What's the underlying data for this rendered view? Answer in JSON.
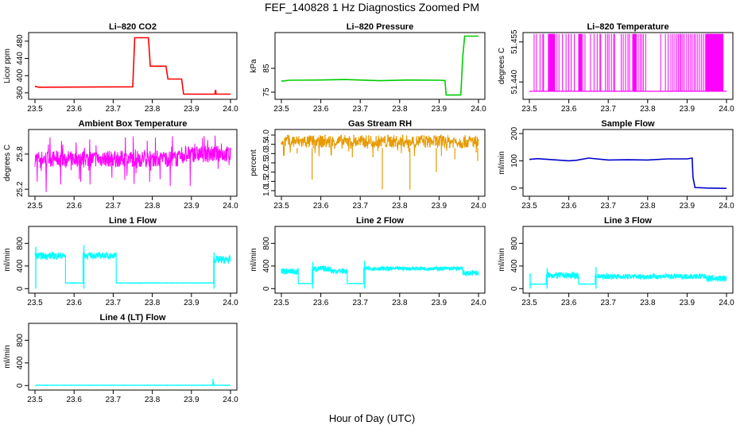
{
  "figure": {
    "title": "FEF_140828  1 Hz Diagnostics Zoomed PM",
    "xlabel": "Hour of Day (UTC)"
  },
  "chart_data": [
    {
      "type": "line",
      "title": "Li–820 CO2",
      "ylabel": "Licor ppm",
      "color": "#ff0000",
      "xlim": [
        23.5,
        24.0
      ],
      "xticks": [
        "23.5",
        "23.6",
        "23.7",
        "23.8",
        "23.9",
        "24.0"
      ],
      "ylim": [
        345,
        500
      ],
      "yticks": [
        "360",
        "400",
        "440",
        "480"
      ],
      "x": [
        23.5,
        23.51,
        23.75,
        23.755,
        23.79,
        23.795,
        23.835,
        23.84,
        23.875,
        23.88,
        23.96,
        23.962,
        23.963,
        24.0
      ],
      "y": [
        375,
        373,
        374,
        488,
        488,
        422,
        422,
        392,
        392,
        357,
        357,
        367,
        357,
        357
      ]
    },
    {
      "type": "line",
      "title": "Li–820 Pressure",
      "ylabel": "kPa",
      "color": "#00cc00",
      "xlim": [
        23.5,
        24.0
      ],
      "xticks": [
        "23.5",
        "23.6",
        "23.7",
        "23.8",
        "23.9",
        "24.0"
      ],
      "ylim": [
        72,
        100
      ],
      "yticks": [
        "75",
        "85"
      ],
      "x": [
        23.5,
        23.52,
        23.6,
        23.66,
        23.75,
        23.82,
        23.9,
        23.915,
        23.918,
        23.955,
        23.96,
        23.965,
        24.0
      ],
      "y": [
        79.6,
        80.0,
        80.1,
        80.3,
        79.8,
        80.1,
        80.0,
        79.9,
        73.8,
        73.8,
        90.0,
        98.5,
        98.5
      ]
    },
    {
      "type": "line",
      "title": "Li–820 Temperature",
      "ylabel": "degrees C",
      "color": "#ff00ff",
      "xlim": [
        23.5,
        24.0
      ],
      "xticks": [
        "23.5",
        "23.6",
        "23.7",
        "23.8",
        "23.9",
        "24.0"
      ],
      "ylim": [
        51.4335,
        51.4585
      ],
      "yticks": [
        "51.440",
        "51.455"
      ],
      "baseline": 51.4365,
      "spike": 51.458,
      "spike_times": [
        23.512,
        23.518,
        23.527,
        23.534,
        23.536,
        23.548,
        23.552,
        23.556,
        23.562,
        23.57,
        23.575,
        23.584,
        23.593,
        23.6,
        23.606,
        23.614,
        23.635,
        23.641,
        23.655,
        23.664,
        23.672,
        23.679,
        23.681,
        23.693,
        23.698,
        23.702,
        23.708,
        23.714,
        23.716,
        23.733,
        23.738,
        23.744,
        23.75,
        23.754,
        23.762,
        23.776,
        23.781,
        23.785,
        23.789,
        23.795,
        23.833,
        23.845,
        23.852,
        23.859,
        23.864,
        23.869,
        23.874,
        23.878,
        23.882,
        23.885,
        23.889,
        23.893,
        23.899,
        23.904,
        23.909,
        23.913,
        23.918,
        23.922,
        23.927,
        23.932,
        23.937,
        23.942,
        23.947,
        23.953,
        23.956,
        23.96,
        23.963,
        23.966,
        23.97,
        23.975,
        23.979,
        23.983,
        23.986,
        23.99
      ],
      "spike_blocks": [
        [
          23.55,
          23.565
        ],
        [
          23.625,
          23.633
        ],
        [
          23.764,
          23.772
        ],
        [
          23.948,
          23.992
        ]
      ]
    },
    {
      "type": "line",
      "title": "Ambient Box Temperature",
      "ylabel": "degrees C",
      "color": "#ff00ff",
      "xlim": [
        23.5,
        24.0
      ],
      "xticks": [
        "23.5",
        "23.6",
        "23.7",
        "23.8",
        "23.9",
        "24.0"
      ],
      "ylim": [
        25.08,
        26.22
      ],
      "yticks": [
        "25.2",
        "25.8"
      ],
      "band_center": 25.72,
      "band_halfwidth": 0.14,
      "upper_spike": 26.12,
      "lower_spike": 25.15,
      "band_center_late": 25.8,
      "late_start": 23.88
    },
    {
      "type": "line",
      "title": "Gas Stream RH",
      "ylabel": "percent",
      "color": "#e69a00",
      "xlim": [
        23.5,
        24.0
      ],
      "xticks": [
        "23.5",
        "23.6",
        "23.7",
        "23.8",
        "23.9",
        "24.0"
      ],
      "ylim": [
        0.7,
        4.3
      ],
      "yticks": [
        "1.0",
        "1.5",
        "2.0",
        "2.5",
        "3.0",
        "3.5",
        "4.0"
      ],
      "band_low": 3.3,
      "band_high": 4.0,
      "dips": [
        {
          "x": 23.578,
          "y": 1.6
        },
        {
          "x": 23.756,
          "y": 1.08
        },
        {
          "x": 23.826,
          "y": 1.05
        },
        {
          "x": 23.893,
          "y": 2.0
        },
        {
          "x": 23.94,
          "y": 2.7
        },
        {
          "x": 23.998,
          "y": 2.6
        },
        {
          "x": 23.68,
          "y": 2.8
        },
        {
          "x": 23.54,
          "y": 3.0
        }
      ]
    },
    {
      "type": "line",
      "title": "Sample Flow",
      "ylabel": "ml/min",
      "color": "#0000cc",
      "xlim": [
        23.5,
        24.0
      ],
      "xticks": [
        "23.5",
        "23.6",
        "23.7",
        "23.8",
        "23.9",
        "24.0"
      ],
      "ylim": [
        -30,
        215
      ],
      "yticks": [
        "0",
        "100",
        "200"
      ],
      "x": [
        23.5,
        23.52,
        23.6,
        23.62,
        23.65,
        23.7,
        23.75,
        23.8,
        23.85,
        23.9,
        23.913,
        23.915,
        23.92,
        23.95,
        24.0
      ],
      "y": [
        105,
        108,
        100,
        102,
        110,
        103,
        104,
        103,
        107,
        107,
        110,
        40,
        2,
        0,
        -1
      ]
    },
    {
      "type": "line",
      "title": "Line 1 Flow",
      "ylabel": "ml/min",
      "color": "#00ffff",
      "xlim": [
        23.5,
        24.0
      ],
      "xticks": [
        "23.5",
        "23.6",
        "23.7",
        "23.8",
        "23.9",
        "24.0"
      ],
      "ylim": [
        -80,
        1100
      ],
      "yticks": [
        "0",
        "400",
        "800"
      ],
      "segments": [
        {
          "x0": 23.5,
          "x1": 23.578,
          "low": 520,
          "high": 640
        },
        {
          "x0": 23.578,
          "x1": 23.623,
          "flat": 100
        },
        {
          "x0": 23.623,
          "x1": 23.708,
          "low": 530,
          "high": 640
        },
        {
          "x0": 23.708,
          "x1": 23.957,
          "flat": 100
        },
        {
          "x0": 23.957,
          "x1": 24.0,
          "low": 440,
          "high": 580
        }
      ],
      "spikes": [
        {
          "x": 23.502,
          "y": 740
        },
        {
          "x": 23.625,
          "y": 770
        },
        {
          "x": 23.958,
          "y": 640
        }
      ]
    },
    {
      "type": "line",
      "title": "Line 2 Flow",
      "ylabel": "ml/min",
      "color": "#00ffff",
      "xlim": [
        23.5,
        24.0
      ],
      "xticks": [
        "23.5",
        "23.6",
        "23.7",
        "23.8",
        "23.9",
        "24.0"
      ],
      "ylim": [
        -80,
        1100
      ],
      "yticks": [
        "0",
        "400",
        "800"
      ],
      "segments": [
        {
          "x0": 23.5,
          "x1": 23.543,
          "low": 250,
          "high": 360
        },
        {
          "x0": 23.543,
          "x1": 23.578,
          "flat": 90
        },
        {
          "x0": 23.578,
          "x1": 23.625,
          "low": 300,
          "high": 400
        },
        {
          "x0": 23.625,
          "x1": 23.667,
          "low": 260,
          "high": 360
        },
        {
          "x0": 23.667,
          "x1": 23.709,
          "flat": 90
        },
        {
          "x0": 23.709,
          "x1": 23.96,
          "low": 320,
          "high": 390
        },
        {
          "x0": 23.96,
          "x1": 24.0,
          "low": 230,
          "high": 320
        }
      ],
      "spikes": [
        {
          "x": 23.58,
          "y": 470
        },
        {
          "x": 23.711,
          "y": 490
        }
      ]
    },
    {
      "type": "line",
      "title": "Line 3 Flow",
      "ylabel": "ml/min",
      "color": "#00ffff",
      "xlim": [
        23.5,
        24.0
      ],
      "xticks": [
        "23.5",
        "23.6",
        "23.7",
        "23.8",
        "23.9",
        "24.0"
      ],
      "ylim": [
        -80,
        1100
      ],
      "yticks": [
        "0",
        "400",
        "800"
      ],
      "segments": [
        {
          "x0": 23.5,
          "x1": 23.543,
          "flat": 80
        },
        {
          "x0": 23.543,
          "x1": 23.625,
          "low": 180,
          "high": 290
        },
        {
          "x0": 23.625,
          "x1": 23.667,
          "flat": 80
        },
        {
          "x0": 23.667,
          "x1": 23.95,
          "low": 170,
          "high": 260
        },
        {
          "x0": 23.95,
          "x1": 24.0,
          "low": 120,
          "high": 240
        }
      ],
      "spikes": [
        {
          "x": 23.502,
          "y": 270
        },
        {
          "x": 23.545,
          "y": 360
        },
        {
          "x": 23.669,
          "y": 380
        }
      ]
    },
    {
      "type": "line",
      "title": "Line 4 (LT) Flow",
      "ylabel": "ml/min",
      "color": "#00ffff",
      "xlim": [
        23.5,
        24.0
      ],
      "xticks": [
        "23.5",
        "23.6",
        "23.7",
        "23.8",
        "23.9",
        "24.0"
      ],
      "ylim": [
        -80,
        1100
      ],
      "yticks": [
        "0",
        "400",
        "800"
      ],
      "segments": [
        {
          "x0": 23.5,
          "x1": 24.0,
          "flat": 5
        }
      ],
      "spikes": [
        {
          "x": 23.955,
          "y": 120
        },
        {
          "x": 23.957,
          "y": 60
        }
      ]
    }
  ]
}
